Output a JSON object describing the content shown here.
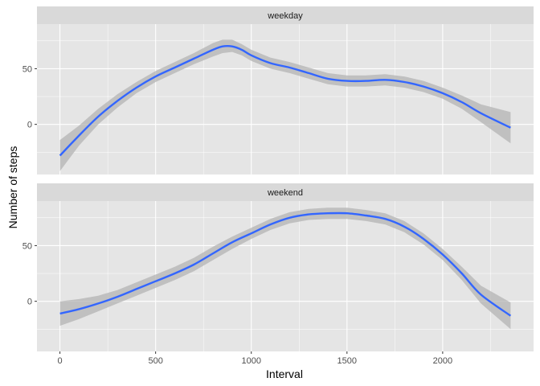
{
  "chart_data": {
    "type": "line",
    "subtype": "smoothed line with confidence band, faceted",
    "xlabel": "Interval",
    "ylabel": "Number of steps",
    "xlim": [
      -120,
      2475
    ],
    "x_ticks": [
      0,
      500,
      1000,
      1500,
      2000
    ],
    "x_tick_labels": [
      "0",
      "500",
      "1000",
      "1500",
      "2000"
    ],
    "y_ticks": [
      0,
      50
    ],
    "y_tick_labels": [
      "0",
      "50"
    ],
    "grid": true,
    "colors": {
      "panel_background": "#e5e5e5",
      "strip_background": "#d9d9d9",
      "grid": "#ffffff",
      "line": "#3366ff",
      "ribbon": "#b3b3b3"
    },
    "facets": [
      {
        "label": "weekday",
        "ylim": [
          -45,
          90
        ],
        "series": [
          {
            "x": [
              0,
              100,
              200,
              300,
              400,
              500,
              600,
              700,
              800,
              850,
              900,
              950,
              1000,
              1100,
              1200,
              1300,
              1400,
              1500,
              1600,
              1700,
              1800,
              1900,
              2000,
              2100,
              2200,
              2355
            ],
            "y": [
              -28,
              -10,
              7,
              21,
              33,
              43,
              51,
              59,
              67,
              70,
              70,
              67,
              62,
              55,
              51,
              46,
              41,
              39,
              39,
              40,
              38,
              34,
              28,
              20,
              10,
              -3
            ],
            "lower": [
              -42,
              -19,
              0,
              15,
              28,
              38,
              46,
              54,
              61,
              64,
              65,
              62,
              57,
              50,
              46,
              41,
              36,
              34,
              34,
              35,
              33,
              29,
              23,
              14,
              2,
              -17
            ],
            "upper": [
              -14,
              -1,
              14,
              27,
              38,
              48,
              56,
              64,
              73,
              76,
              76,
              72,
              67,
              60,
              56,
              51,
              46,
              44,
              44,
              45,
              43,
              39,
              33,
              26,
              18,
              11
            ]
          }
        ]
      },
      {
        "label": "weekend",
        "ylim": [
          -45,
          90
        ],
        "series": [
          {
            "x": [
              0,
              100,
              200,
              300,
              400,
              500,
              600,
              700,
              800,
              900,
              1000,
              1100,
              1200,
              1300,
              1400,
              1500,
              1600,
              1700,
              1800,
              1900,
              2000,
              2100,
              2200,
              2355
            ],
            "y": [
              -11,
              -7,
              -2,
              4,
              11,
              18,
              25,
              33,
              43,
              53,
              61,
              69,
              75,
              78,
              79,
              79,
              77,
              74,
              67,
              56,
              42,
              25,
              6,
              -13
            ],
            "lower": [
              -22,
              -16,
              -9,
              -2,
              5,
              12,
              19,
              27,
              37,
              47,
              56,
              64,
              70,
              73,
              74,
              74,
              72,
              69,
              62,
              51,
              37,
              19,
              -2,
              -25
            ],
            "upper": [
              0,
              2,
              5,
              10,
              17,
              24,
              31,
              39,
              49,
              58,
              66,
              74,
              80,
              83,
              84,
              84,
              82,
              79,
              72,
              61,
              47,
              31,
              14,
              -1
            ]
          }
        ]
      }
    ]
  }
}
